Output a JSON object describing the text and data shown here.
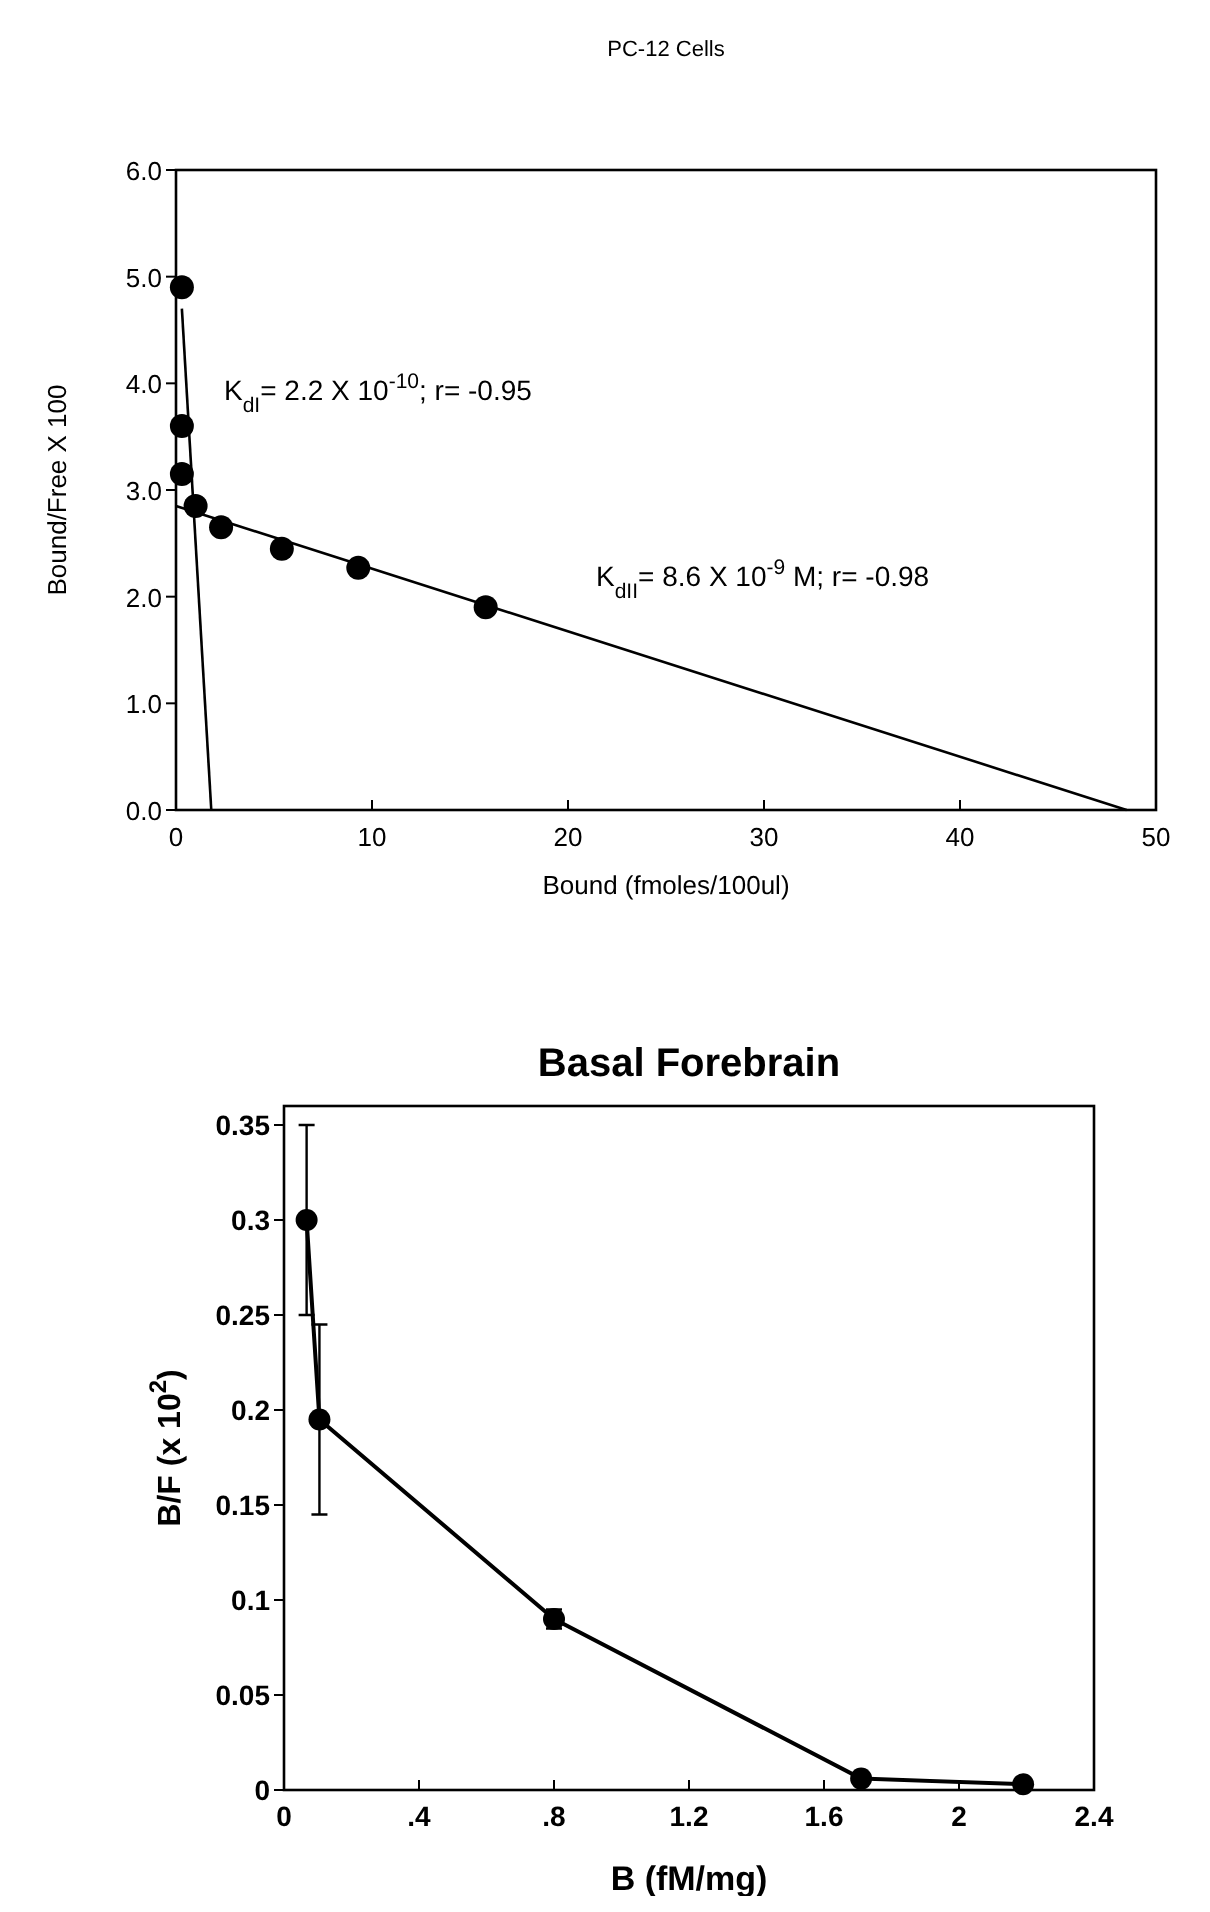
{
  "chart_data": [
    {
      "type": "scatter",
      "title": "PC-12 Cells",
      "xlabel": "Bound  (fmoles/100ul)",
      "ylabel": "Bound/Free  X  100",
      "xlim": [
        0,
        50
      ],
      "ylim": [
        0,
        6
      ],
      "xticks": [
        0,
        10,
        20,
        30,
        40,
        50
      ],
      "yticks": [
        {
          "value": 0,
          "label": "0.0"
        },
        {
          "value": 1,
          "label": "1.0"
        },
        {
          "value": 2,
          "label": "2.0"
        },
        {
          "value": 3,
          "label": "3.0"
        },
        {
          "value": 4,
          "label": "4.0"
        },
        {
          "value": 5,
          "label": "5.0"
        },
        {
          "value": 6,
          "label": "6.0"
        }
      ],
      "grid": false,
      "annotations": [
        "K$_{dI}$= 2.2 X 10$^{-10}$; r= -0.95",
        "K$_{dII}$= 8.6 X 10$^{-9}$ M; r= -0.98"
      ],
      "series": [
        {
          "type": "scatter",
          "color": "#000000",
          "marker": "circle",
          "x": [
            0.3,
            0.3,
            0.3,
            1.0,
            2.3,
            5.4,
            9.3,
            15.8
          ],
          "values": [
            4.9,
            3.6,
            3.15,
            2.85,
            2.65,
            2.45,
            2.27,
            1.9
          ]
        },
        {
          "type": "line",
          "color": "#000000",
          "marker": "none",
          "x": [
            0.3,
            1.8
          ],
          "values": [
            4.7,
            0
          ]
        },
        {
          "type": "line",
          "color": "#000000",
          "marker": "none",
          "x": [
            0,
            48.5
          ],
          "values": [
            2.85,
            0
          ]
        }
      ]
    },
    {
      "type": "line",
      "title": "Basal Forebrain",
      "xlabel": "B (fM/mg)",
      "ylabel": "B/F (x 10$^{2}$)",
      "xlim": [
        0,
        2.4
      ],
      "ylim": [
        0,
        0.36
      ],
      "xticks": [
        0,
        {
          "value": 0.4,
          "label": ".4"
        },
        {
          "value": 0.8,
          "label": ".8"
        },
        1.2,
        1.6,
        2,
        2.4
      ],
      "yticks": [
        0,
        0.05,
        0.1,
        0.15,
        0.2,
        0.25,
        0.3,
        0.35
      ],
      "grid": false,
      "series": [
        {
          "color": "#000000",
          "marker": "circle",
          "x": [
            0.067,
            0.105,
            0.8,
            1.71,
            2.19
          ],
          "values": [
            0.3,
            0.195,
            0.09,
            0.006,
            0.003
          ],
          "errors": [
            0.05,
            0.05,
            0.005,
            null,
            null
          ]
        }
      ]
    }
  ]
}
